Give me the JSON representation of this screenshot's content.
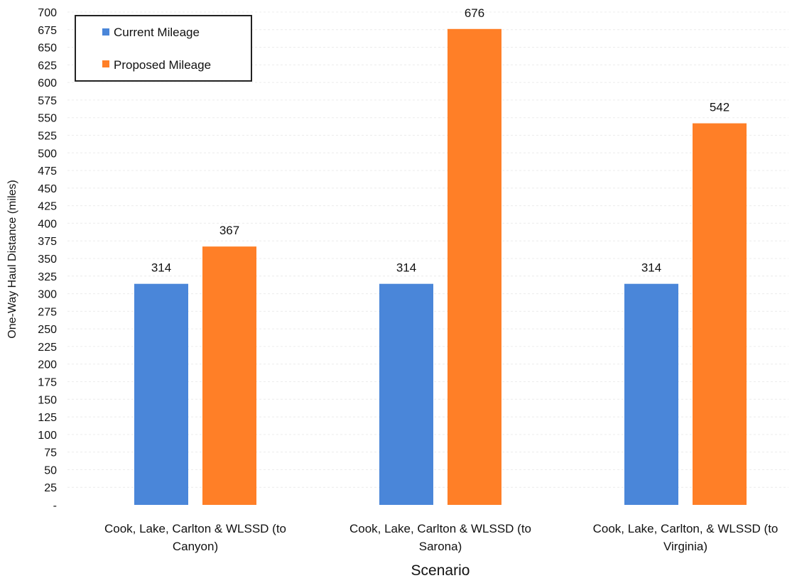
{
  "chart_data": {
    "type": "bar",
    "categories": [
      [
        "Cook, Lake, Carlton & WLSSD (to",
        "Canyon)"
      ],
      [
        "Cook, Lake, Carlton & WLSSD (to",
        "Sarona)"
      ],
      [
        "Cook, Lake, Carlton, & WLSSD (to",
        "Virginia)"
      ]
    ],
    "series": [
      {
        "name": "Current Mileage",
        "color": "#4a86d9",
        "values": [
          314,
          314,
          314
        ],
        "labels": [
          "314",
          "314",
          "314"
        ]
      },
      {
        "name": "Proposed Mileage",
        "color": "#ff7f27",
        "values": [
          367,
          676,
          542
        ],
        "labels": [
          "367",
          "676",
          "542"
        ]
      }
    ],
    "xlabel": "Scenario",
    "ylabel": "One-Way Haul Distance (miles)",
    "ylim": [
      0,
      700
    ],
    "yticks": [
      0,
      25,
      50,
      75,
      100,
      125,
      150,
      175,
      200,
      225,
      250,
      275,
      300,
      325,
      350,
      375,
      400,
      425,
      450,
      475,
      500,
      525,
      550,
      575,
      600,
      625,
      650,
      675,
      700
    ],
    "ytick_labels": [
      "-",
      "25",
      "50",
      "75",
      "100",
      "125",
      "150",
      "175",
      "200",
      "225",
      "250",
      "275",
      "300",
      "325",
      "350",
      "375",
      "400",
      "425",
      "450",
      "475",
      "500",
      "525",
      "550",
      "575",
      "600",
      "625",
      "650",
      "675",
      "700"
    ],
    "grid": true,
    "legend": "top-left"
  }
}
